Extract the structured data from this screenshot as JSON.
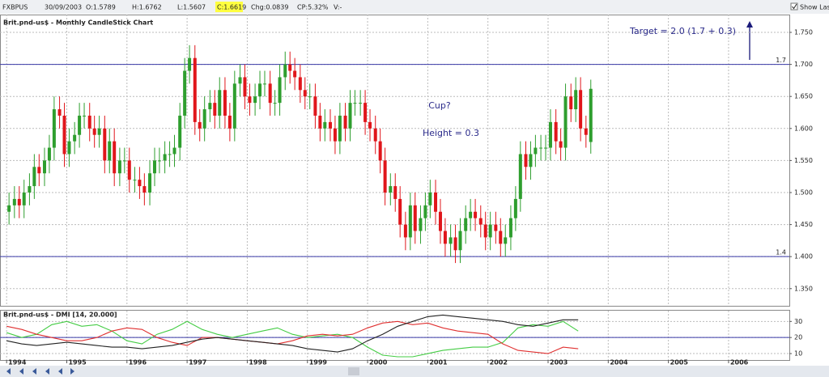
{
  "toolbar": {
    "symbol": "FXBPUS",
    "date": "30/09/2003",
    "open": "O:1.5789",
    "high": "H:1.6762",
    "low": "L:1.5607",
    "close": "C:1.6619",
    "change": "Chg:0.0839",
    "change_pct": "CP:5.32%",
    "volume": "V:-",
    "show_last": "Show Last"
  },
  "chart_data": [
    {
      "type": "candlestick",
      "title": "Brit.pnd-us$ - Monthly CandleStick Chart",
      "up_color": "#2e9e2e",
      "down_color": "#e0161b",
      "grid": true,
      "xlim": [
        1993.89,
        2007.01
      ],
      "xticks": [
        1994,
        1995,
        1996,
        1997,
        1998,
        1999,
        2000,
        2001,
        2002,
        2003,
        2004,
        2005,
        2006
      ],
      "ylim": [
        1.3232,
        1.7778
      ],
      "yticks": [
        {
          "value": 1.35,
          "label": "1.350"
        },
        {
          "value": 1.4,
          "label": "1.400"
        },
        {
          "value": 1.45,
          "label": "1.450"
        },
        {
          "value": 1.5,
          "label": "1.500"
        },
        {
          "value": 1.55,
          "label": "1.550"
        },
        {
          "value": 1.6,
          "label": "1.600"
        },
        {
          "value": 1.65,
          "label": "1.650"
        },
        {
          "value": 1.7,
          "label": "1.700"
        },
        {
          "value": 1.75,
          "label": "1.750"
        }
      ],
      "hlines": [
        {
          "value": 1.7,
          "label": "1.7"
        },
        {
          "value": 1.4,
          "label": "1.4"
        }
      ],
      "annotations": [
        "Target = 2.0 (1.7 + 0.3)",
        "Cup?",
        "Height = 0.3"
      ],
      "x": [
        1994.04,
        1994.13,
        1994.21,
        1994.29,
        1994.38,
        1994.46,
        1994.54,
        1994.63,
        1994.71,
        1994.79,
        1994.88,
        1994.96,
        1995.04,
        1995.13,
        1995.21,
        1995.29,
        1995.38,
        1995.46,
        1995.54,
        1995.63,
        1995.71,
        1995.79,
        1995.88,
        1995.96,
        1996.04,
        1996.13,
        1996.21,
        1996.29,
        1996.38,
        1996.46,
        1996.54,
        1996.63,
        1996.71,
        1996.79,
        1996.88,
        1996.96,
        1997.04,
        1997.13,
        1997.21,
        1997.29,
        1997.38,
        1997.46,
        1997.54,
        1997.63,
        1997.71,
        1997.79,
        1997.88,
        1997.96,
        1998.04,
        1998.13,
        1998.21,
        1998.29,
        1998.38,
        1998.46,
        1998.54,
        1998.63,
        1998.71,
        1998.79,
        1998.88,
        1998.96,
        1999.04,
        1999.13,
        1999.21,
        1999.29,
        1999.38,
        1999.46,
        1999.54,
        1999.63,
        1999.71,
        1999.79,
        1999.88,
        1999.96,
        2000.04,
        2000.13,
        2000.21,
        2000.29,
        2000.38,
        2000.46,
        2000.54,
        2000.63,
        2000.71,
        2000.79,
        2000.88,
        2000.96,
        2001.04,
        2001.13,
        2001.21,
        2001.29,
        2001.38,
        2001.46,
        2001.54,
        2001.63,
        2001.71,
        2001.79,
        2001.88,
        2001.96,
        2002.04,
        2002.13,
        2002.21,
        2002.29,
        2002.38,
        2002.46,
        2002.54,
        2002.63,
        2002.71,
        2002.79,
        2002.88,
        2002.96,
        2003.04,
        2003.13,
        2003.21,
        2003.29,
        2003.38,
        2003.46,
        2003.54,
        2003.63,
        2003.71
      ],
      "open": [
        1.47,
        1.48,
        1.49,
        1.48,
        1.5,
        1.51,
        1.54,
        1.53,
        1.55,
        1.57,
        1.63,
        1.62,
        1.56,
        1.58,
        1.59,
        1.62,
        1.62,
        1.6,
        1.59,
        1.6,
        1.55,
        1.58,
        1.53,
        1.55,
        1.55,
        1.52,
        1.52,
        1.51,
        1.5,
        1.53,
        1.55,
        1.55,
        1.56,
        1.56,
        1.57,
        1.62,
        1.69,
        1.71,
        1.61,
        1.6,
        1.63,
        1.64,
        1.62,
        1.66,
        1.62,
        1.6,
        1.67,
        1.68,
        1.65,
        1.64,
        1.65,
        1.67,
        1.67,
        1.64,
        1.64,
        1.68,
        1.7,
        1.69,
        1.68,
        1.66,
        1.65,
        1.65,
        1.62,
        1.6,
        1.61,
        1.6,
        1.58,
        1.62,
        1.6,
        1.64,
        1.64,
        1.64,
        1.61,
        1.6,
        1.58,
        1.55,
        1.5,
        1.51,
        1.49,
        1.45,
        1.43,
        1.48,
        1.44,
        1.46,
        1.48,
        1.5,
        1.47,
        1.44,
        1.42,
        1.43,
        1.41,
        1.44,
        1.46,
        1.47,
        1.46,
        1.45,
        1.43,
        1.45,
        1.44,
        1.42,
        1.43,
        1.46,
        1.49,
        1.56,
        1.54,
        1.56,
        1.57,
        1.57,
        1.57,
        1.61,
        1.58,
        1.57,
        1.65,
        1.63,
        1.66,
        1.6,
        1.5789
      ],
      "high": [
        1.5,
        1.51,
        1.51,
        1.52,
        1.53,
        1.56,
        1.56,
        1.57,
        1.59,
        1.65,
        1.65,
        1.64,
        1.6,
        1.61,
        1.64,
        1.64,
        1.64,
        1.62,
        1.62,
        1.62,
        1.6,
        1.6,
        1.57,
        1.57,
        1.57,
        1.54,
        1.54,
        1.53,
        1.55,
        1.57,
        1.57,
        1.58,
        1.58,
        1.59,
        1.64,
        1.71,
        1.73,
        1.73,
        1.63,
        1.65,
        1.66,
        1.66,
        1.68,
        1.68,
        1.64,
        1.69,
        1.7,
        1.7,
        1.67,
        1.67,
        1.69,
        1.69,
        1.69,
        1.66,
        1.7,
        1.72,
        1.72,
        1.71,
        1.7,
        1.68,
        1.67,
        1.67,
        1.64,
        1.63,
        1.63,
        1.62,
        1.64,
        1.64,
        1.66,
        1.66,
        1.66,
        1.66,
        1.63,
        1.62,
        1.6,
        1.57,
        1.53,
        1.53,
        1.51,
        1.47,
        1.5,
        1.5,
        1.48,
        1.5,
        1.52,
        1.52,
        1.49,
        1.46,
        1.45,
        1.45,
        1.46,
        1.48,
        1.49,
        1.49,
        1.48,
        1.47,
        1.47,
        1.47,
        1.46,
        1.45,
        1.48,
        1.51,
        1.58,
        1.58,
        1.58,
        1.59,
        1.59,
        1.59,
        1.63,
        1.63,
        1.6,
        1.67,
        1.67,
        1.68,
        1.68,
        1.62,
        1.6762
      ],
      "low": [
        1.45,
        1.46,
        1.46,
        1.46,
        1.48,
        1.49,
        1.51,
        1.51,
        1.53,
        1.55,
        1.6,
        1.54,
        1.54,
        1.56,
        1.57,
        1.6,
        1.58,
        1.57,
        1.57,
        1.53,
        1.53,
        1.51,
        1.51,
        1.53,
        1.5,
        1.5,
        1.49,
        1.48,
        1.48,
        1.51,
        1.53,
        1.53,
        1.54,
        1.54,
        1.55,
        1.6,
        1.67,
        1.59,
        1.58,
        1.58,
        1.61,
        1.6,
        1.6,
        1.6,
        1.58,
        1.58,
        1.65,
        1.63,
        1.62,
        1.62,
        1.63,
        1.65,
        1.62,
        1.62,
        1.62,
        1.66,
        1.67,
        1.66,
        1.64,
        1.63,
        1.63,
        1.6,
        1.58,
        1.58,
        1.58,
        1.56,
        1.56,
        1.58,
        1.58,
        1.62,
        1.62,
        1.59,
        1.58,
        1.56,
        1.53,
        1.48,
        1.48,
        1.47,
        1.43,
        1.41,
        1.41,
        1.42,
        1.42,
        1.44,
        1.46,
        1.45,
        1.42,
        1.4,
        1.4,
        1.39,
        1.39,
        1.42,
        1.44,
        1.44,
        1.43,
        1.41,
        1.41,
        1.42,
        1.4,
        1.4,
        1.41,
        1.44,
        1.47,
        1.52,
        1.52,
        1.54,
        1.55,
        1.55,
        1.55,
        1.56,
        1.55,
        1.55,
        1.61,
        1.61,
        1.58,
        1.57,
        1.5607
      ],
      "close": [
        1.48,
        1.49,
        1.48,
        1.5,
        1.51,
        1.54,
        1.53,
        1.55,
        1.57,
        1.63,
        1.62,
        1.56,
        1.58,
        1.59,
        1.62,
        1.62,
        1.6,
        1.59,
        1.6,
        1.55,
        1.58,
        1.53,
        1.55,
        1.55,
        1.52,
        1.52,
        1.51,
        1.5,
        1.53,
        1.55,
        1.55,
        1.56,
        1.56,
        1.57,
        1.62,
        1.69,
        1.71,
        1.61,
        1.6,
        1.63,
        1.64,
        1.62,
        1.66,
        1.62,
        1.6,
        1.67,
        1.68,
        1.65,
        1.64,
        1.65,
        1.67,
        1.67,
        1.64,
        1.64,
        1.68,
        1.7,
        1.69,
        1.68,
        1.66,
        1.65,
        1.65,
        1.62,
        1.6,
        1.61,
        1.6,
        1.58,
        1.62,
        1.6,
        1.64,
        1.64,
        1.64,
        1.61,
        1.6,
        1.58,
        1.55,
        1.5,
        1.51,
        1.49,
        1.45,
        1.43,
        1.48,
        1.44,
        1.46,
        1.48,
        1.5,
        1.47,
        1.44,
        1.42,
        1.43,
        1.41,
        1.44,
        1.46,
        1.47,
        1.46,
        1.45,
        1.43,
        1.45,
        1.44,
        1.42,
        1.43,
        1.46,
        1.49,
        1.56,
        1.54,
        1.56,
        1.57,
        1.57,
        1.57,
        1.61,
        1.58,
        1.57,
        1.65,
        1.63,
        1.66,
        1.6,
        1.59,
        1.6619
      ]
    },
    {
      "type": "line",
      "title": "Brit.pnd-us$ - DMI [14, 20.000]",
      "grid": true,
      "xlim": [
        1993.89,
        2007.01
      ],
      "xticks": [
        1994,
        1995,
        1996,
        1997,
        1998,
        1999,
        2000,
        2001,
        2002,
        2003,
        2004,
        2005,
        2006
      ],
      "ylim": [
        6,
        36.7
      ],
      "yticks": [
        10,
        20,
        30
      ],
      "hlines": [
        {
          "value": 20,
          "color": "#3a3aa8"
        }
      ],
      "x": [
        1994.0,
        1994.25,
        1994.5,
        1994.75,
        1995.0,
        1995.25,
        1995.5,
        1995.75,
        1996.0,
        1996.25,
        1996.5,
        1996.75,
        1997.0,
        1997.25,
        1997.5,
        1997.75,
        1998.0,
        1998.25,
        1998.5,
        1998.75,
        1999.0,
        1999.25,
        1999.5,
        1999.75,
        2000.0,
        2000.25,
        2000.5,
        2000.75,
        2001.0,
        2001.25,
        2001.5,
        2001.75,
        2002.0,
        2002.25,
        2002.5,
        2002.75,
        2003.0,
        2003.25,
        2003.5
      ],
      "series": [
        {
          "color": "#44cc44",
          "values": [
            23,
            20,
            22,
            28,
            30,
            27,
            28,
            24,
            18,
            16,
            22,
            25,
            30,
            25,
            22,
            20,
            22,
            24,
            26,
            22,
            20,
            21,
            22,
            20,
            14,
            9,
            8,
            8,
            10,
            12,
            13,
            14,
            14,
            17,
            26,
            28,
            27,
            30,
            24
          ]
        },
        {
          "color": "#e03030",
          "values": [
            27,
            25,
            22,
            20,
            18,
            18,
            20,
            24,
            26,
            25,
            20,
            17,
            15,
            20,
            20,
            19,
            18,
            17,
            16,
            18,
            21,
            22,
            21,
            22,
            26,
            29,
            30,
            28,
            29,
            26,
            24,
            23,
            22,
            16,
            12,
            11,
            10,
            14,
            13
          ]
        },
        {
          "color": "#222222",
          "values": [
            18,
            16,
            15,
            16,
            17,
            16,
            15,
            14,
            14,
            13,
            14,
            15,
            17,
            19,
            20,
            19,
            18,
            17,
            16,
            15,
            13,
            12,
            11,
            13,
            18,
            22,
            27,
            30,
            33,
            34,
            33,
            32,
            31,
            30,
            28,
            27,
            29,
            31,
            31
          ]
        }
      ]
    }
  ]
}
